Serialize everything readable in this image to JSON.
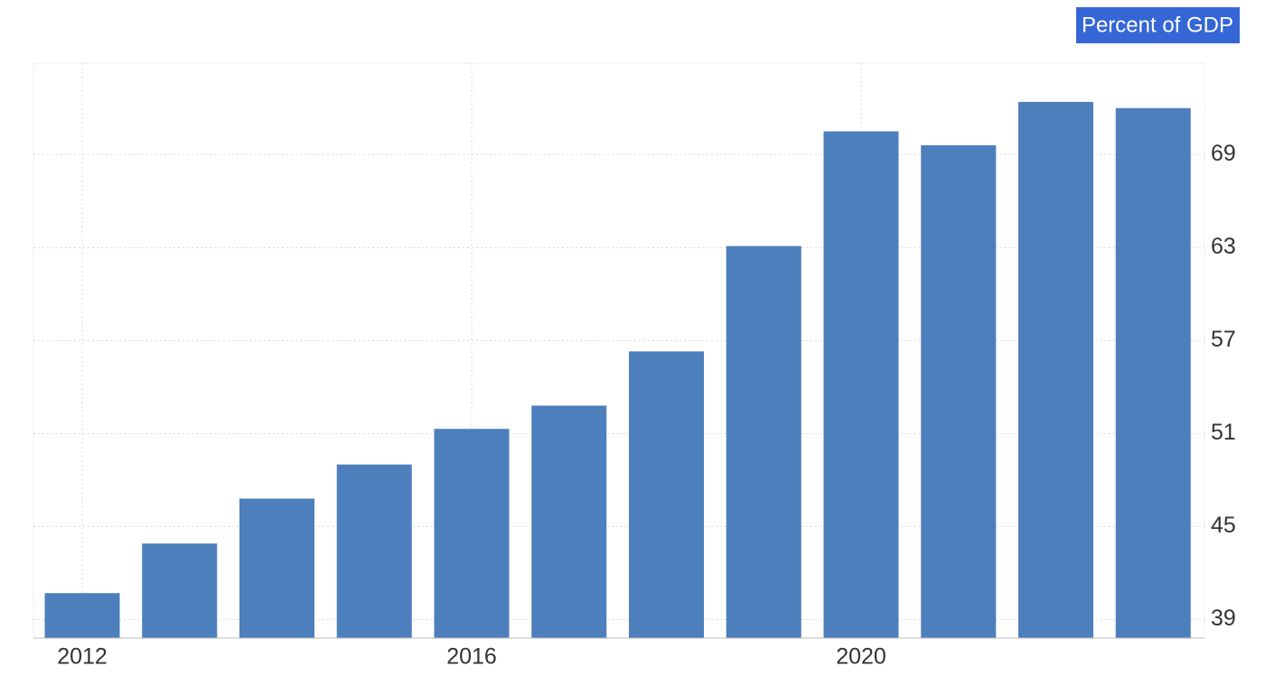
{
  "chart_data": {
    "type": "bar",
    "unit_label": "Percent of GDP",
    "categories": [
      "2012",
      null,
      null,
      null,
      "2016",
      null,
      null,
      null,
      "2020",
      null,
      null,
      null
    ],
    "values": [
      40.7,
      43.9,
      46.8,
      49.0,
      51.3,
      52.8,
      56.3,
      63.1,
      70.5,
      69.6,
      72.4,
      72.0
    ],
    "color": "#4d7fbc",
    "ylim": [
      37.8,
      74.9
    ],
    "yticks": [
      39,
      45,
      51,
      57,
      63,
      69
    ],
    "grid": true
  }
}
